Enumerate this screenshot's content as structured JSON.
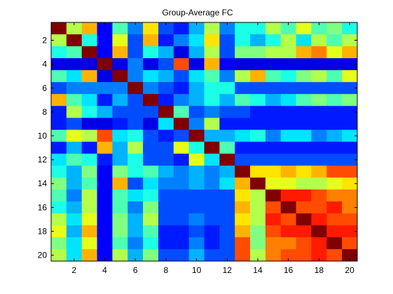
{
  "chart_data": {
    "type": "heatmap",
    "title": "Group-Average  FC",
    "xlabel": "",
    "ylabel": "",
    "rows": 20,
    "cols": 20,
    "x_ticks": [
      2,
      4,
      6,
      8,
      10,
      12,
      14,
      16,
      18,
      20
    ],
    "y_ticks": [
      2,
      4,
      6,
      8,
      10,
      12,
      14,
      16,
      18,
      20
    ],
    "colormap": "jet",
    "clim": [
      0,
      1
    ],
    "grid": false,
    "values": [
      [
        1.0,
        0.55,
        0.7,
        0.12,
        0.45,
        0.25,
        0.65,
        0.2,
        0.15,
        0.3,
        0.55,
        0.25,
        0.4,
        0.4,
        0.55,
        0.45,
        0.6,
        0.45,
        0.5,
        0.4
      ],
      [
        0.55,
        1.0,
        0.4,
        0.12,
        0.6,
        0.2,
        0.7,
        0.15,
        0.25,
        0.35,
        0.65,
        0.2,
        0.4,
        0.3,
        0.4,
        0.55,
        0.35,
        0.55,
        0.45,
        0.55
      ],
      [
        0.4,
        0.45,
        1.0,
        0.12,
        0.7,
        0.2,
        0.4,
        0.3,
        0.1,
        0.3,
        0.55,
        0.2,
        0.5,
        0.5,
        0.55,
        0.55,
        0.7,
        0.75,
        0.6,
        0.7
      ],
      [
        0.1,
        0.1,
        0.1,
        1.0,
        0.1,
        0.25,
        0.1,
        0.2,
        0.8,
        0.1,
        0.7,
        0.12,
        0.1,
        0.1,
        0.1,
        0.1,
        0.1,
        0.1,
        0.1,
        0.1
      ],
      [
        0.45,
        0.35,
        0.7,
        0.1,
        1.0,
        0.25,
        0.35,
        0.3,
        0.2,
        0.35,
        0.45,
        0.25,
        0.55,
        0.7,
        0.45,
        0.4,
        0.5,
        0.55,
        0.45,
        0.6
      ],
      [
        0.2,
        0.25,
        0.25,
        0.25,
        0.25,
        1.0,
        0.25,
        0.2,
        0.15,
        0.3,
        0.4,
        0.4,
        0.2,
        0.2,
        0.2,
        0.2,
        0.2,
        0.2,
        0.2,
        0.2
      ],
      [
        0.7,
        0.45,
        0.35,
        0.15,
        0.3,
        0.2,
        1.0,
        0.15,
        0.25,
        0.3,
        0.4,
        0.3,
        0.45,
        0.4,
        0.3,
        0.35,
        0.45,
        0.5,
        0.45,
        0.5
      ],
      [
        0.15,
        0.55,
        0.4,
        0.3,
        0.2,
        0.2,
        0.2,
        1.0,
        0.45,
        0.2,
        0.25,
        0.2,
        0.2,
        0.15,
        0.15,
        0.15,
        0.15,
        0.15,
        0.15,
        0.15
      ],
      [
        0.15,
        0.2,
        0.1,
        0.1,
        0.15,
        0.2,
        0.1,
        0.35,
        1.0,
        0.25,
        0.55,
        0.15,
        0.15,
        0.15,
        0.15,
        0.15,
        0.15,
        0.15,
        0.15,
        0.15
      ],
      [
        0.45,
        0.6,
        0.55,
        0.8,
        0.35,
        0.4,
        0.2,
        0.15,
        0.2,
        1.0,
        0.3,
        0.3,
        0.35,
        0.4,
        0.25,
        0.35,
        0.35,
        0.25,
        0.3,
        0.35
      ],
      [
        0.15,
        0.3,
        0.15,
        0.7,
        0.3,
        0.55,
        0.2,
        0.2,
        0.6,
        0.4,
        1.0,
        0.45,
        0.15,
        0.15,
        0.15,
        0.15,
        0.15,
        0.15,
        0.15,
        0.15
      ],
      [
        0.35,
        0.45,
        0.4,
        0.15,
        0.3,
        0.4,
        0.2,
        0.2,
        0.15,
        0.6,
        0.35,
        1.0,
        0.2,
        0.2,
        0.2,
        0.2,
        0.2,
        0.2,
        0.2,
        0.2
      ],
      [
        0.4,
        0.3,
        0.5,
        0.12,
        0.5,
        0.4,
        0.45,
        0.3,
        0.25,
        0.3,
        0.25,
        0.3,
        1.0,
        0.65,
        0.65,
        0.7,
        0.65,
        0.7,
        0.8,
        0.8
      ],
      [
        0.5,
        0.3,
        0.45,
        0.12,
        0.7,
        0.2,
        0.35,
        0.25,
        0.25,
        0.3,
        0.25,
        0.35,
        0.7,
        1.0,
        0.6,
        0.6,
        0.55,
        0.55,
        0.6,
        0.65
      ],
      [
        0.45,
        0.25,
        0.55,
        0.12,
        0.45,
        0.35,
        0.4,
        0.2,
        0.2,
        0.2,
        0.2,
        0.2,
        0.65,
        0.55,
        1.0,
        0.85,
        0.85,
        0.8,
        0.75,
        0.75
      ],
      [
        0.4,
        0.3,
        0.55,
        0.12,
        0.45,
        0.25,
        0.5,
        0.2,
        0.2,
        0.2,
        0.2,
        0.2,
        0.7,
        0.55,
        0.8,
        1.0,
        0.8,
        0.8,
        0.85,
        0.75
      ],
      [
        0.55,
        0.35,
        0.6,
        0.12,
        0.5,
        0.3,
        0.55,
        0.2,
        0.2,
        0.25,
        0.2,
        0.2,
        0.65,
        0.55,
        0.85,
        0.8,
        1.0,
        0.85,
        0.8,
        0.8
      ],
      [
        0.6,
        0.3,
        0.7,
        0.12,
        0.5,
        0.3,
        0.45,
        0.15,
        0.15,
        0.2,
        0.15,
        0.2,
        0.7,
        0.5,
        0.8,
        0.85,
        0.85,
        1.0,
        0.85,
        0.85
      ],
      [
        0.5,
        0.35,
        0.6,
        0.12,
        0.45,
        0.25,
        0.4,
        0.15,
        0.15,
        0.25,
        0.15,
        0.2,
        0.8,
        0.5,
        0.75,
        0.75,
        0.8,
        0.85,
        1.0,
        0.8
      ],
      [
        0.55,
        0.35,
        0.7,
        0.12,
        0.55,
        0.3,
        0.5,
        0.2,
        0.2,
        0.3,
        0.2,
        0.2,
        0.8,
        0.55,
        0.75,
        0.8,
        0.8,
        0.85,
        0.8,
        1.0
      ]
    ]
  }
}
